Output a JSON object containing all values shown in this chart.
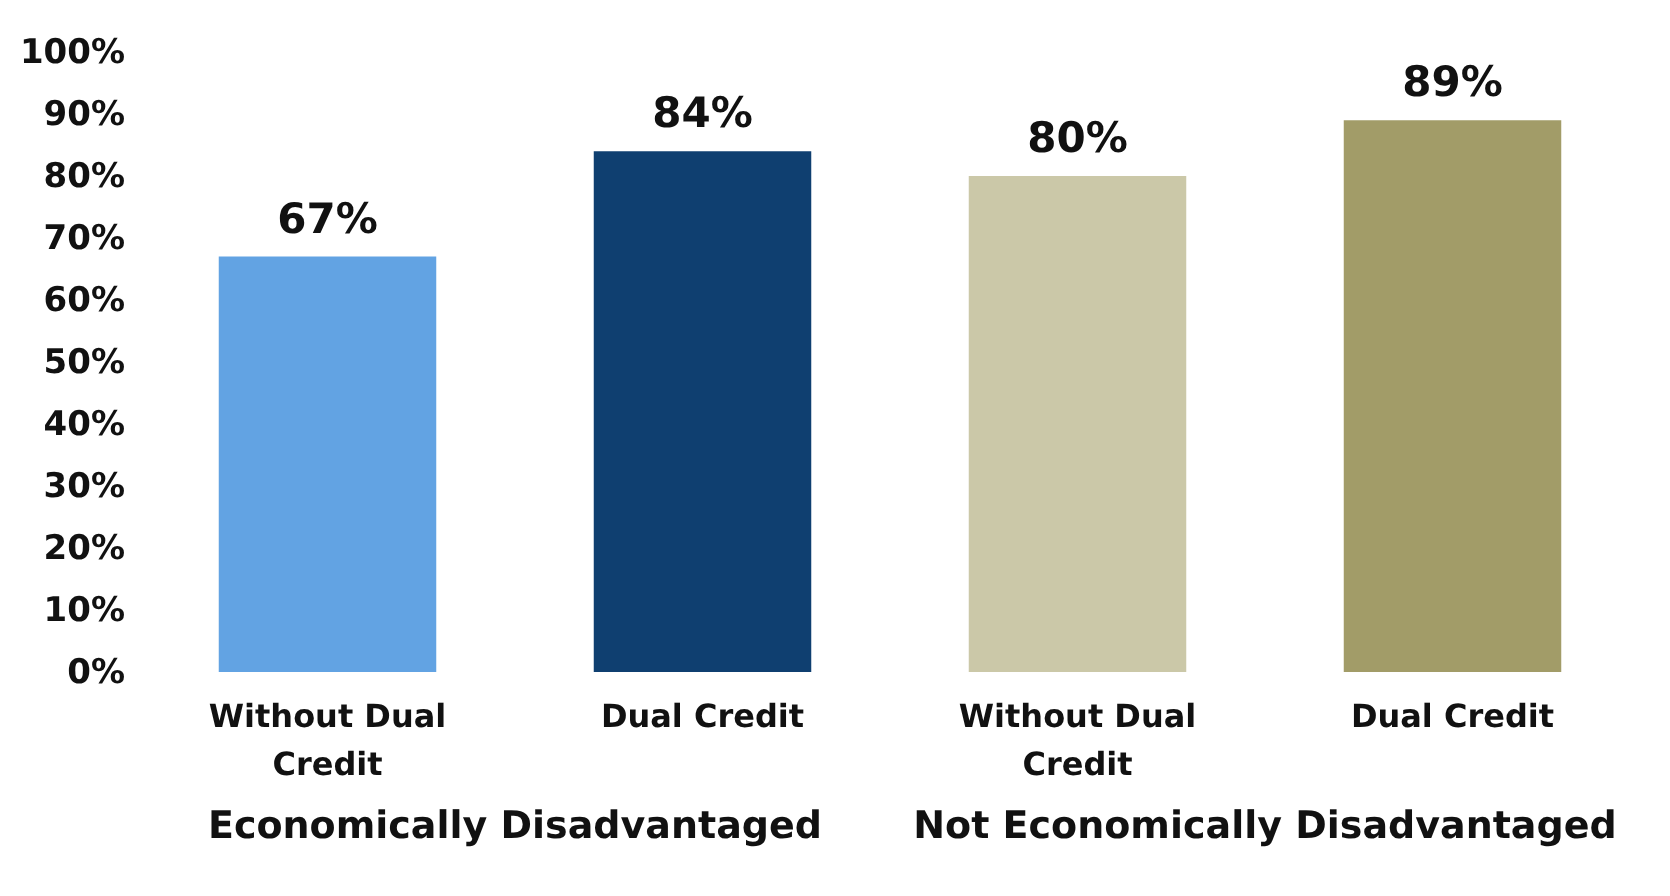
{
  "chart_data": {
    "type": "bar",
    "categories": [
      "Without Dual Credit",
      "Dual Credit",
      "Without Dual Credit",
      "Dual Credit"
    ],
    "values": [
      67,
      84,
      80,
      89
    ],
    "colors": [
      "#62a3e3",
      "#0f3f70",
      "#cbc8a8",
      "#a29c68"
    ],
    "value_labels": [
      "67%",
      "84%",
      "80%",
      "89%"
    ],
    "ylim": [
      0,
      100
    ],
    "yticks": [
      {
        "value": 0,
        "label": "0%"
      },
      {
        "value": 10,
        "label": "10%"
      },
      {
        "value": 20,
        "label": "20%"
      },
      {
        "value": 30,
        "label": "30%"
      },
      {
        "value": 40,
        "label": "40%"
      },
      {
        "value": 50,
        "label": "50%"
      },
      {
        "value": 60,
        "label": "60%"
      },
      {
        "value": 70,
        "label": "70%"
      },
      {
        "value": 80,
        "label": "80%"
      },
      {
        "value": 90,
        "label": "90%"
      },
      {
        "value": 100,
        "label": "100%"
      }
    ],
    "annotations": [
      "Economically Disadvantaged",
      "Not Economically Disadvantaged"
    ],
    "grid": false
  }
}
